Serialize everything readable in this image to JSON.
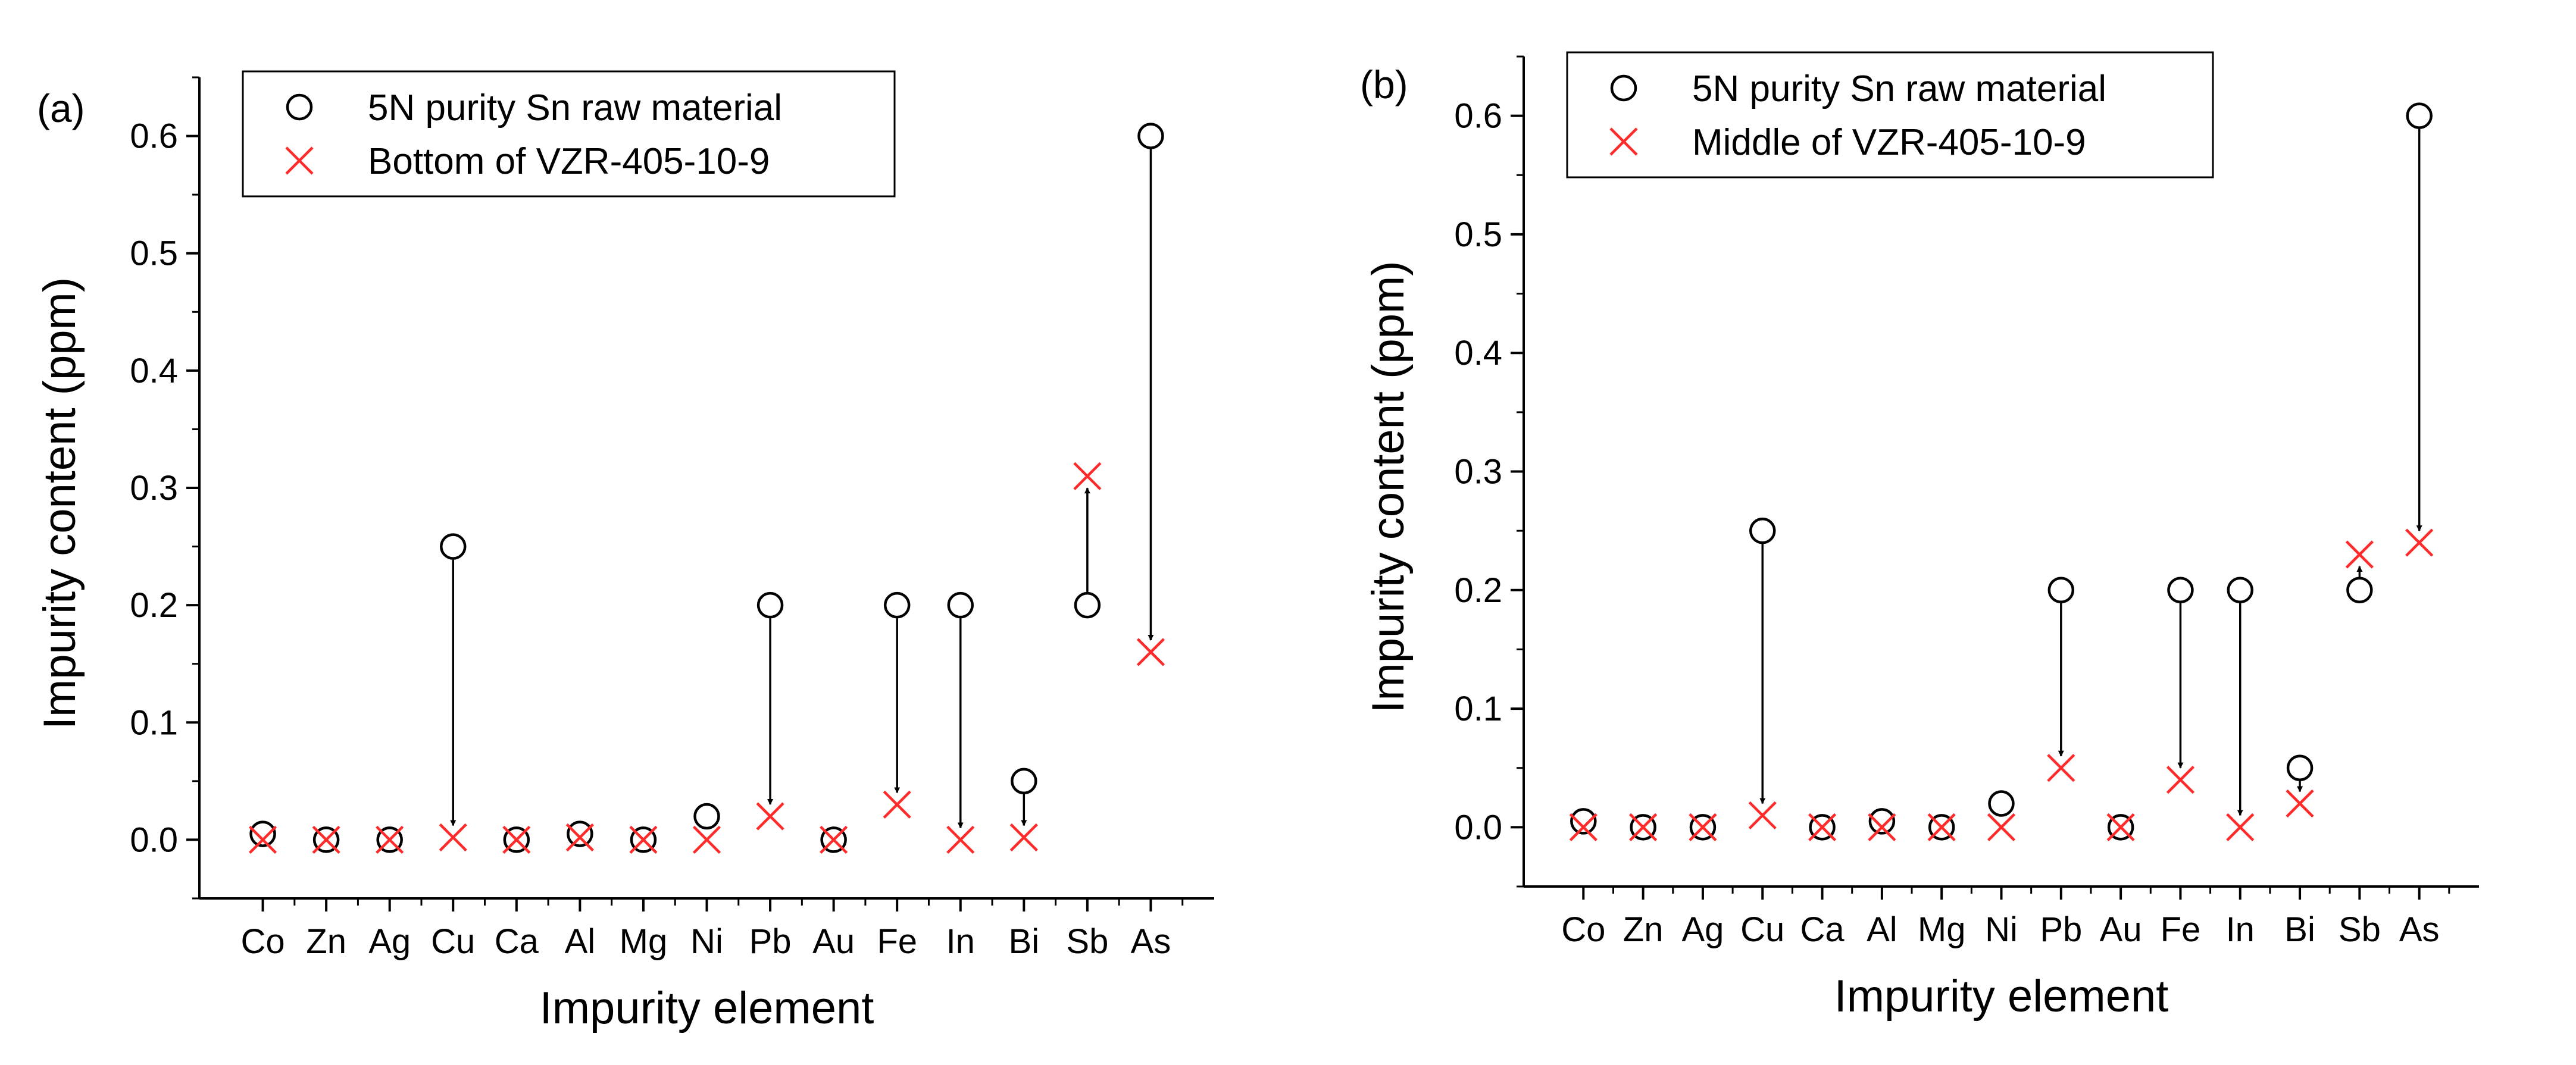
{
  "colors": {
    "raw": "#000000",
    "processed": "#ff2a2a",
    "axis": "#000000",
    "arrow": "#000000"
  },
  "chart_data": [
    {
      "type": "scatter",
      "panel_label": "(a)",
      "title": "",
      "xlabel": "Impurity element",
      "ylabel": "Impurity content (ppm)",
      "ylim": [
        -0.05,
        0.65
      ],
      "yticks": [
        "0.0",
        "0.1",
        "0.2",
        "0.3",
        "0.4",
        "0.5",
        "0.6"
      ],
      "categories": [
        "Co",
        "Zn",
        "Ag",
        "Cu",
        "Ca",
        "Al",
        "Mg",
        "Ni",
        "Pb",
        "Au",
        "Fe",
        "In",
        "Bi",
        "Sb",
        "As"
      ],
      "legend_position": "top-left",
      "series": [
        {
          "name": "5N purity Sn raw material",
          "marker": "circle",
          "values": [
            0.005,
            0,
            0,
            0.25,
            0,
            0.005,
            0,
            0.02,
            0.2,
            0,
            0.2,
            0.2,
            0.05,
            0.2,
            0.6
          ]
        },
        {
          "name": "Bottom of VZR-405-10-9",
          "marker": "x",
          "values": [
            0,
            0,
            0,
            0.002,
            0,
            0.002,
            0,
            0,
            0.02,
            0,
            0.03,
            0,
            0.002,
            0.31,
            0.16
          ]
        }
      ],
      "arrows_between_series": [
        "Cu",
        "Pb",
        "Fe",
        "In",
        "Bi",
        "Sb",
        "As"
      ]
    },
    {
      "type": "scatter",
      "panel_label": "(b)",
      "title": "",
      "xlabel": "Impurity element",
      "ylabel": "Impurity content (ppm)",
      "ylim": [
        -0.05,
        0.65
      ],
      "yticks": [
        "0.0",
        "0.1",
        "0.2",
        "0.3",
        "0.4",
        "0.5",
        "0.6"
      ],
      "categories": [
        "Co",
        "Zn",
        "Ag",
        "Cu",
        "Ca",
        "Al",
        "Mg",
        "Ni",
        "Pb",
        "Au",
        "Fe",
        "In",
        "Bi",
        "Sb",
        "As"
      ],
      "legend_position": "top-left",
      "series": [
        {
          "name": "5N purity Sn raw material",
          "marker": "circle",
          "values": [
            0.005,
            0,
            0,
            0.25,
            0,
            0.005,
            0,
            0.02,
            0.2,
            0,
            0.2,
            0.2,
            0.05,
            0.2,
            0.6
          ]
        },
        {
          "name": "Middle of VZR-405-10-9",
          "marker": "x",
          "values": [
            0,
            0,
            0,
            0.01,
            0,
            0,
            0,
            0,
            0.05,
            0,
            0.04,
            0,
            0.02,
            0.23,
            0.24
          ]
        }
      ],
      "arrows_between_series": [
        "Cu",
        "Pb",
        "Fe",
        "In",
        "Bi",
        "Sb",
        "As"
      ]
    }
  ]
}
